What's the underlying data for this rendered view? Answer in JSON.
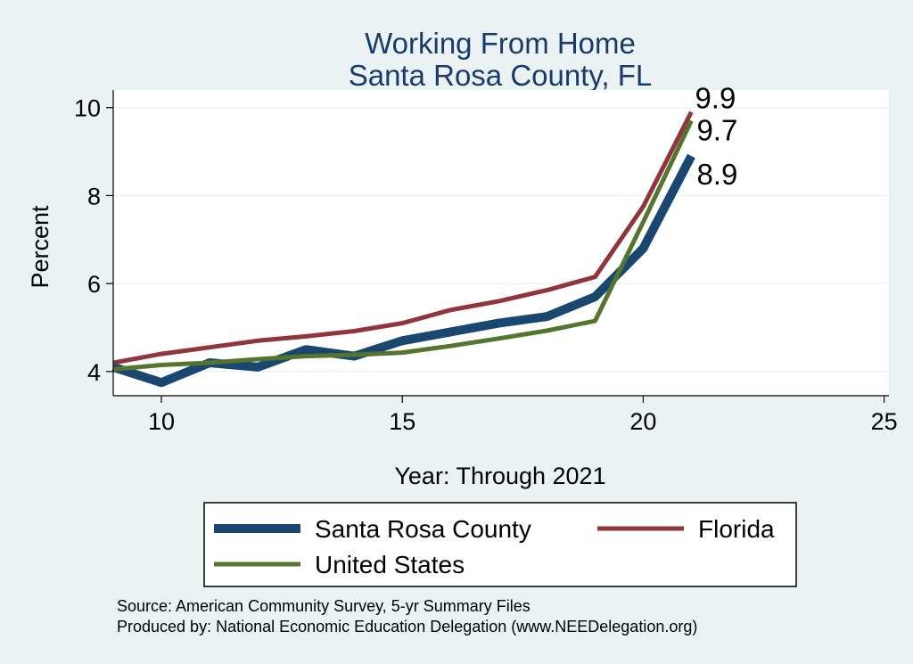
{
  "chart_data": {
    "type": "line",
    "title": [
      "Working From Home",
      "Santa Rosa County, FL"
    ],
    "xlabel": "Year: Through 2021",
    "ylabel": "Percent",
    "xlim": [
      9,
      25.1
    ],
    "ylim": [
      3.45,
      10.4
    ],
    "xticks": [
      10,
      15,
      20,
      25
    ],
    "yticks": [
      4,
      6,
      8,
      10
    ],
    "grid": true,
    "series": [
      {
        "name": "Santa Rosa County",
        "color": "#1a476f",
        "x": [
          9,
          10,
          11,
          12,
          13,
          14,
          15,
          16,
          17,
          18,
          19,
          20,
          21
        ],
        "y": [
          4.1,
          3.75,
          4.2,
          4.1,
          4.5,
          4.35,
          4.7,
          4.9,
          5.1,
          5.25,
          5.7,
          6.8,
          8.9
        ],
        "end_label": "8.9"
      },
      {
        "name": "Florida",
        "color": "#90353b",
        "x": [
          9,
          10,
          11,
          12,
          13,
          14,
          15,
          16,
          17,
          18,
          19,
          20,
          21
        ],
        "y": [
          4.2,
          4.4,
          4.55,
          4.7,
          4.8,
          4.92,
          5.1,
          5.4,
          5.6,
          5.85,
          6.15,
          7.75,
          9.9
        ],
        "end_label": "9.9"
      },
      {
        "name": "United States",
        "color": "#55752f",
        "x": [
          9,
          10,
          11,
          12,
          13,
          14,
          15,
          16,
          17,
          18,
          19,
          20,
          21
        ],
        "y": [
          4.05,
          4.15,
          4.2,
          4.28,
          4.35,
          4.38,
          4.43,
          4.58,
          4.75,
          4.93,
          5.15,
          7.4,
          9.7
        ],
        "end_label": "9.7"
      }
    ],
    "legend": {
      "position": "bottom",
      "entries": [
        "Santa Rosa County",
        "Florida",
        "United States"
      ]
    },
    "notes": [
      "Source: American Community Survey, 5-yr Summary Files",
      "Produced by: National Economic Education Delegation (www.NEEDelegation.org)"
    ]
  }
}
